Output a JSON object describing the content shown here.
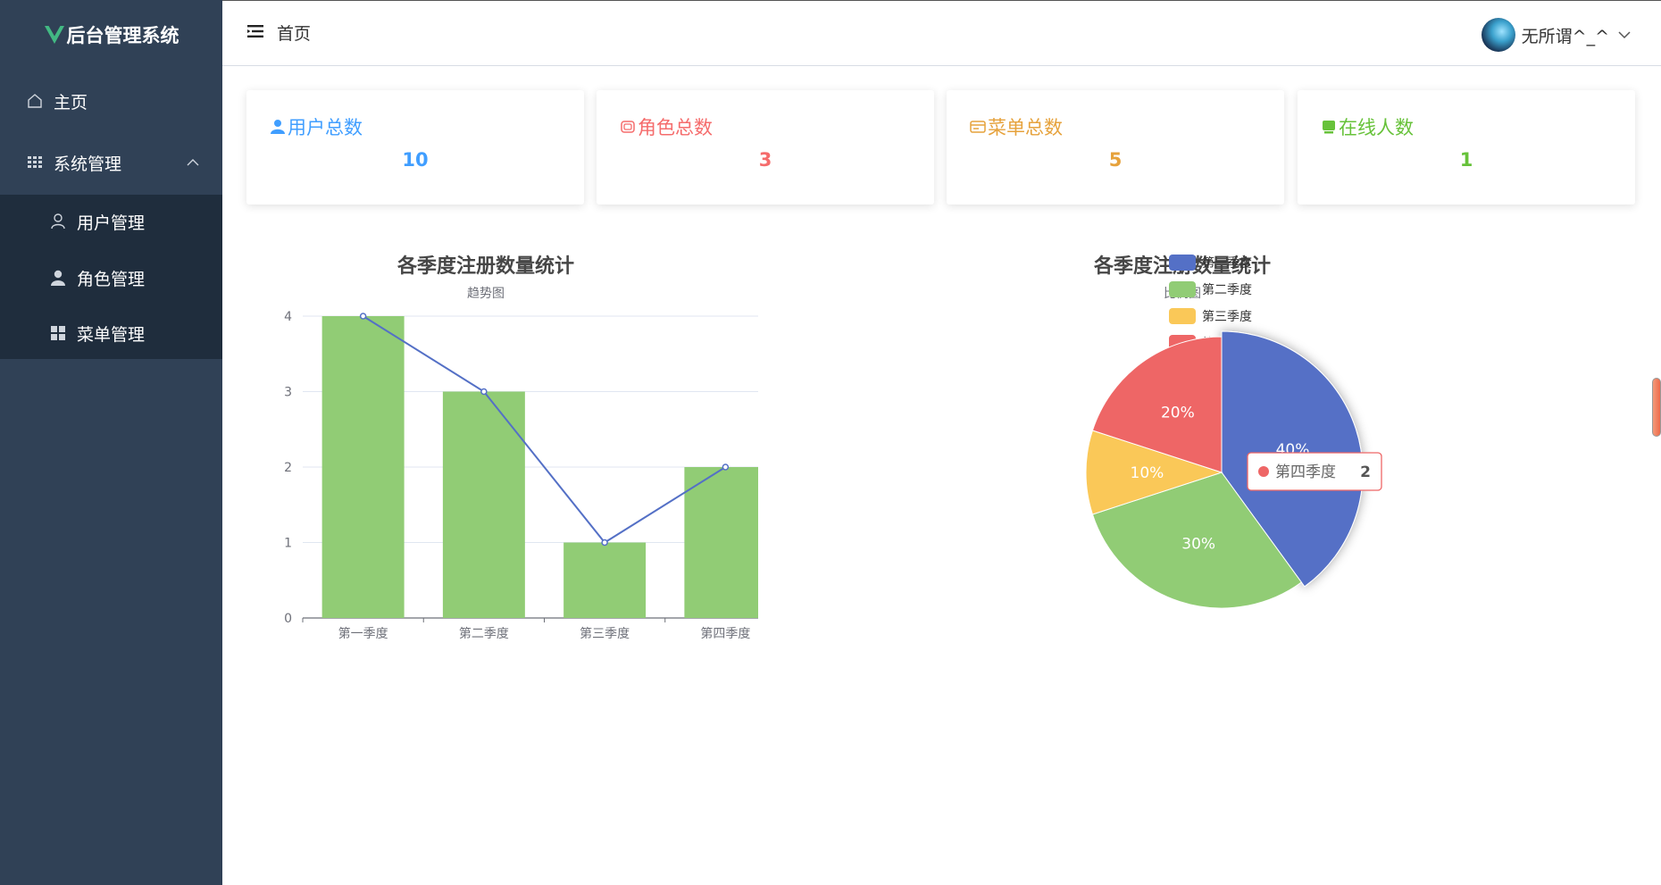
{
  "app": {
    "logo_text": "后台管理系统",
    "accent": "#42b983"
  },
  "sidebar": {
    "items": [
      {
        "label": "主页",
        "icon": "home-icon"
      },
      {
        "label": "系统管理",
        "icon": "grid-icon"
      }
    ],
    "submenu": [
      {
        "label": "用户管理",
        "icon": "user-outline-icon"
      },
      {
        "label": "角色管理",
        "icon": "user-solid-icon"
      },
      {
        "label": "菜单管理",
        "icon": "menu-grid-icon"
      }
    ],
    "colors": {
      "bg": "#304156",
      "sub_bg": "#1f2d3d"
    }
  },
  "header": {
    "breadcrumb": "首页",
    "username": "无所谓^_^"
  },
  "stats": [
    {
      "label": "用户总数",
      "value": "10",
      "color": "#409eff",
      "icon": "user-icon"
    },
    {
      "label": "角色总数",
      "value": "3",
      "color": "#f56c6c",
      "icon": "role-icon"
    },
    {
      "label": "菜单总数",
      "value": "5",
      "color": "#e6a23c",
      "icon": "menu-card-icon"
    },
    {
      "label": "在线人数",
      "value": "1",
      "color": "#67c23a",
      "icon": "online-icon"
    }
  ],
  "chart_data": [
    {
      "type": "bar",
      "title": "各季度注册数量统计",
      "subtitle": "趋势图",
      "categories": [
        "第一季度",
        "第二季度",
        "第三季度",
        "第四季度"
      ],
      "series": [
        {
          "type": "bar",
          "values": [
            4,
            3,
            1,
            2
          ],
          "color": "#91cc75"
        },
        {
          "type": "line",
          "values": [
            4,
            3,
            1,
            2
          ],
          "color": "#5470c6"
        }
      ],
      "ylim": [
        0,
        4
      ],
      "yticks": [
        "0",
        "1",
        "2",
        "3",
        "4"
      ],
      "grid": true
    },
    {
      "type": "pie",
      "title": "各季度注册数量统计",
      "subtitle": "比例图",
      "legend_position": "top-left",
      "slices": [
        {
          "name": "第一季度",
          "value": 4,
          "label": "40%",
          "color": "#5470c6"
        },
        {
          "name": "第二季度",
          "value": 3,
          "label": "30%",
          "color": "#91cc75"
        },
        {
          "name": "第三季度",
          "value": 1,
          "label": "10%",
          "color": "#fac858"
        },
        {
          "name": "第四季度",
          "value": 2,
          "label": "20%",
          "color": "#ee6666"
        }
      ],
      "tooltip": {
        "name": "第四季度",
        "value": "2"
      }
    }
  ]
}
